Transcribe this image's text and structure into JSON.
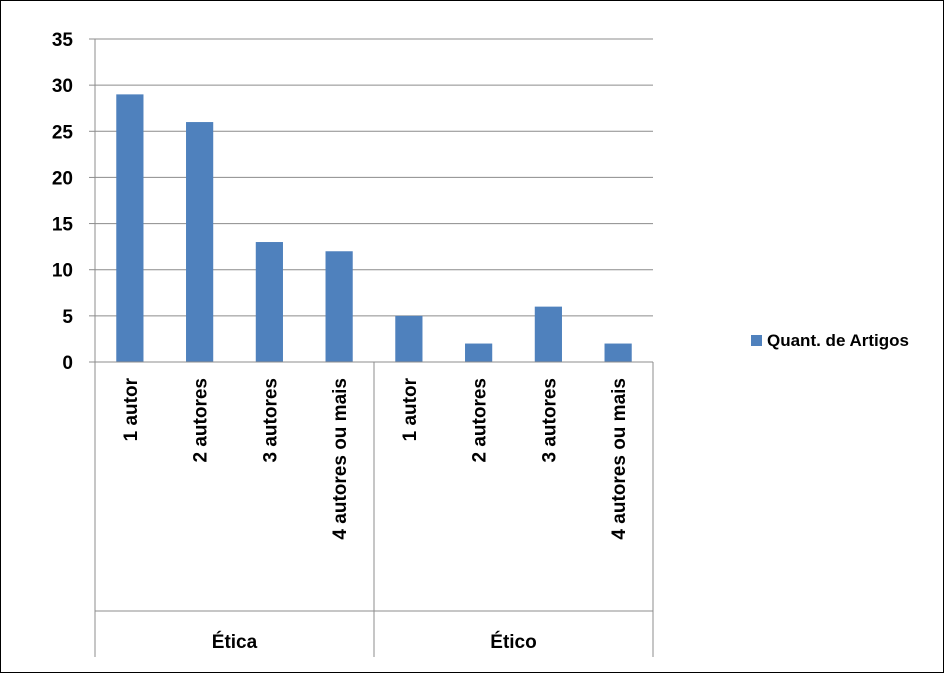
{
  "chart_data": {
    "type": "bar",
    "groups": [
      "Ética",
      "Ético"
    ],
    "categories": [
      "1 autor",
      "2 autores",
      "3 autores",
      "4 autores ou mais",
      "1 autor",
      "2 autores",
      "3 autores",
      "4 autores ou mais"
    ],
    "series": [
      {
        "name": "Quant. de Artigos",
        "values": [
          29,
          26,
          13,
          12,
          5,
          2,
          6,
          2
        ],
        "color": "#4F81BD"
      }
    ],
    "ylim": [
      0,
      35
    ],
    "yticks": [
      0,
      5,
      10,
      15,
      20,
      25,
      30,
      35
    ],
    "grid": true,
    "legend_position": "right"
  }
}
